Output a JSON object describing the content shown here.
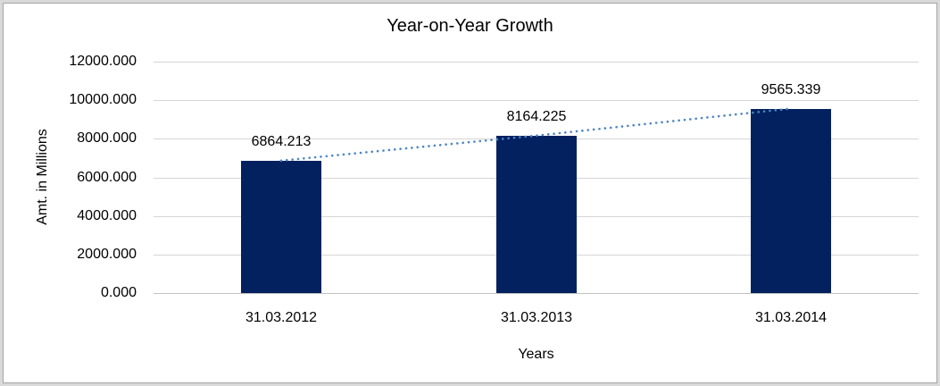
{
  "chart_data": {
    "type": "bar",
    "title": "Year-on-Year Growth",
    "xlabel": "Years",
    "ylabel": "Amt. in Millions",
    "categories": [
      "31.03.2012",
      "31.03.2013",
      "31.03.2014"
    ],
    "values": [
      6864.213,
      8164.225,
      9565.339
    ],
    "data_labels": [
      "6864.213",
      "8164.225",
      "9565.339"
    ],
    "y_ticks": [
      "12000.000",
      "10000.000",
      "8000.000",
      "6000.000",
      "4000.000",
      "2000.000",
      "0.000"
    ],
    "ylim": [
      0,
      12000
    ],
    "y_step": 2000,
    "grid": true,
    "legend_position": "none",
    "trendline": {
      "style": "dotted",
      "color": "#4d85c4"
    },
    "colors": {
      "bar": "#03215f",
      "gridline": "#d6d6d6",
      "axis_line": "#c2c2c2",
      "text": "#000000"
    }
  }
}
